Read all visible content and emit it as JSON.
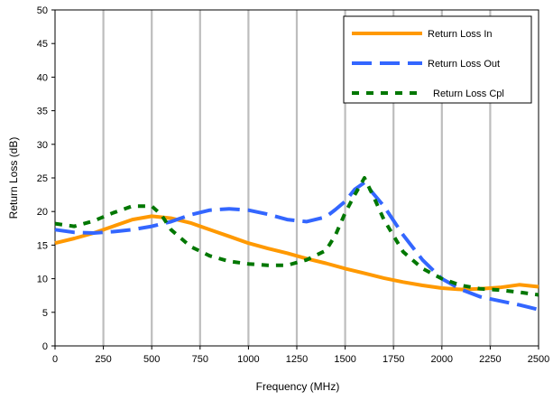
{
  "chart_data": {
    "type": "line",
    "xlabel": "Frequency (MHz)",
    "ylabel": "Return Loss (dB)",
    "xlim": [
      0,
      2500
    ],
    "ylim": [
      0,
      50
    ],
    "xticks": [
      0,
      250,
      500,
      750,
      1000,
      1250,
      1500,
      1750,
      2000,
      2250,
      2500
    ],
    "yticks": [
      0,
      5,
      10,
      15,
      20,
      25,
      30,
      35,
      40,
      45,
      50
    ],
    "vertical_grid": true,
    "horizontal_grid": false,
    "legend_position": "top-right",
    "series": [
      {
        "name": "Return Loss In",
        "color": "#FF9900",
        "style": "solid",
        "x": [
          0,
          100,
          200,
          300,
          400,
          500,
          600,
          700,
          800,
          900,
          1000,
          1100,
          1200,
          1300,
          1400,
          1500,
          1600,
          1700,
          1800,
          1900,
          2000,
          2100,
          2200,
          2300,
          2400,
          2500
        ],
        "y": [
          15.3,
          16.0,
          16.8,
          17.8,
          18.8,
          19.3,
          19.0,
          18.3,
          17.3,
          16.3,
          15.3,
          14.5,
          13.8,
          13.0,
          12.3,
          11.5,
          10.8,
          10.1,
          9.5,
          9.0,
          8.6,
          8.4,
          8.5,
          8.7,
          9.1,
          8.8
        ]
      },
      {
        "name": "Return Loss Out",
        "color": "#3366FF",
        "style": "dash",
        "x": [
          0,
          100,
          200,
          300,
          400,
          500,
          600,
          700,
          800,
          900,
          1000,
          1100,
          1200,
          1300,
          1400,
          1450,
          1500,
          1550,
          1600,
          1650,
          1700,
          1800,
          1900,
          2000,
          2100,
          2200,
          2300,
          2400,
          2500
        ],
        "y": [
          17.3,
          16.9,
          16.8,
          17.0,
          17.3,
          17.8,
          18.5,
          19.5,
          20.2,
          20.4,
          20.2,
          19.6,
          18.8,
          18.5,
          19.2,
          20.3,
          21.5,
          23.3,
          24.3,
          22.5,
          20.8,
          16.5,
          12.8,
          10.0,
          8.4,
          7.3,
          6.7,
          6.1,
          5.4
        ]
      },
      {
        "name": "Return Loss Cpl",
        "color": "#007700",
        "style": "dash",
        "x": [
          0,
          100,
          200,
          300,
          400,
          500,
          550,
          600,
          700,
          800,
          900,
          1000,
          1100,
          1200,
          1300,
          1400,
          1450,
          1500,
          1550,
          1600,
          1650,
          1700,
          1800,
          1900,
          2000,
          2100,
          2200,
          2300,
          2400,
          2500
        ],
        "y": [
          18.2,
          17.8,
          18.6,
          19.8,
          20.8,
          20.8,
          19.5,
          17.3,
          14.8,
          13.4,
          12.6,
          12.2,
          12.0,
          12.0,
          12.8,
          14.2,
          16.5,
          19.8,
          22.5,
          25.0,
          22.0,
          18.8,
          14.0,
          11.5,
          10.0,
          9.0,
          8.5,
          8.3,
          8.0,
          7.6
        ]
      }
    ]
  }
}
